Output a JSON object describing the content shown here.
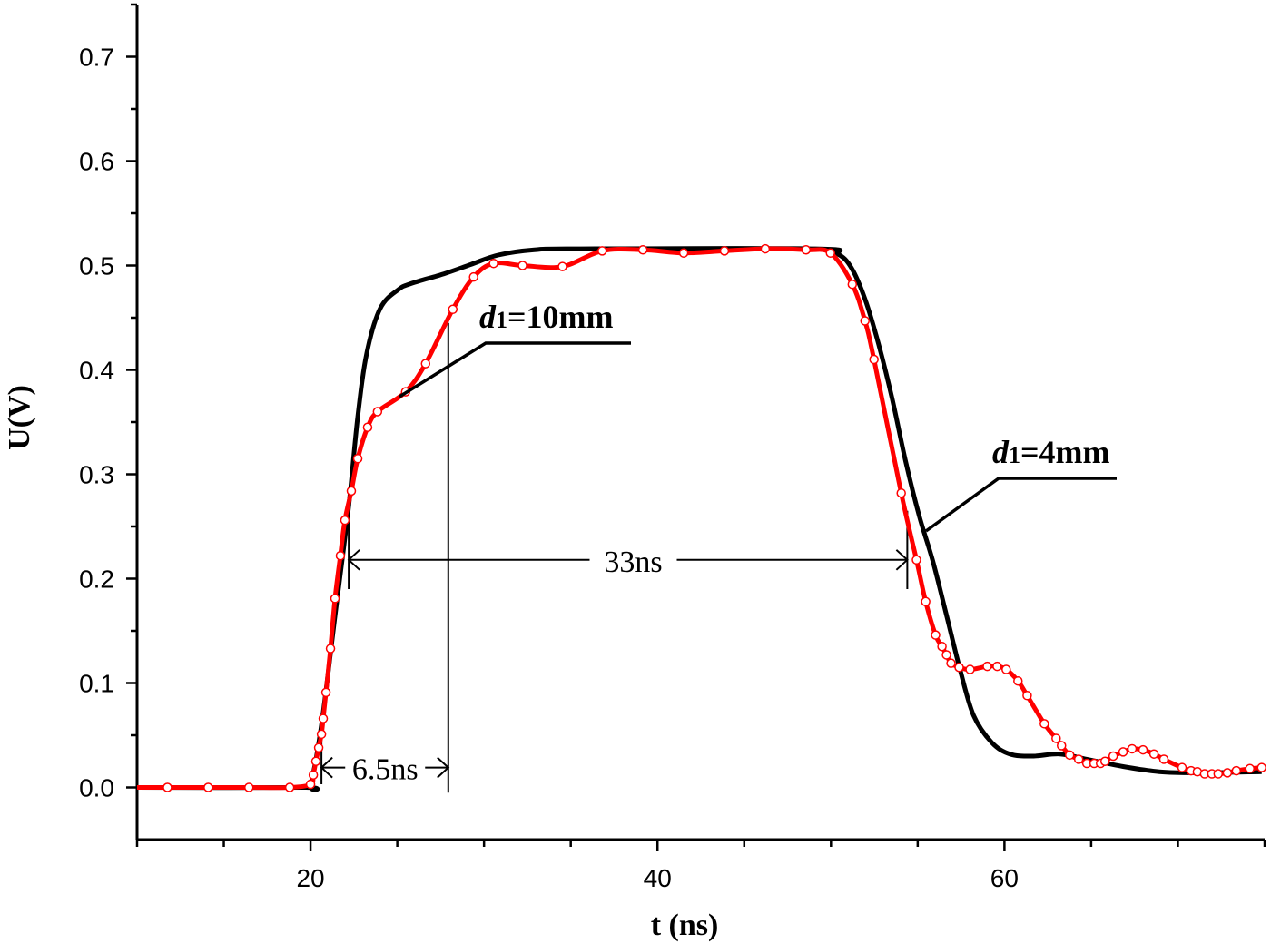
{
  "chart_data": {
    "type": "line",
    "title": "",
    "xlabel": "t (ns)",
    "ylabel": "U(V)",
    "xlim": [
      10,
      75
    ],
    "ylim": [
      -0.05,
      0.75
    ],
    "xticks": [
      20,
      40,
      60
    ],
    "xtick_labels": [
      "20",
      "40",
      "60"
    ],
    "x_minor_step": 5,
    "yticks": [
      0.0,
      0.1,
      0.2,
      0.3,
      0.4,
      0.5,
      0.6,
      0.7
    ],
    "ytick_labels": [
      "0.0",
      "0.1",
      "0.2",
      "0.3",
      "0.4",
      "0.5",
      "0.6",
      "0.7"
    ],
    "y_minor_step": 0.05,
    "grid": false,
    "series": [
      {
        "name": "d1=4mm",
        "label_italic": "d",
        "label_sub": "1",
        "label_rest": "=4mm",
        "color": "#000000",
        "marker": "none",
        "x": [
          10,
          19.58,
          20.0,
          20.63,
          21.41,
          22.19,
          22.72,
          23.24,
          24.02,
          25.07,
          25.85,
          27.68,
          29.24,
          30.81,
          32.9,
          35.5,
          49.09,
          50.39,
          51.17,
          51.96,
          52.74,
          53.52,
          54.31,
          55.09,
          55.87,
          56.66,
          57.44,
          58.22,
          59.27,
          60.31,
          61.62,
          63.19,
          64.75,
          66.84,
          68.93,
          71.02,
          74.83
        ],
        "y": [
          0,
          0,
          0.003,
          0.06,
          0.164,
          0.268,
          0.355,
          0.416,
          0.459,
          0.477,
          0.483,
          0.492,
          0.501,
          0.51,
          0.515,
          0.516,
          0.516,
          0.511,
          0.498,
          0.468,
          0.425,
          0.373,
          0.312,
          0.26,
          0.217,
          0.165,
          0.113,
          0.069,
          0.043,
          0.032,
          0.03,
          0.032,
          0.027,
          0.02,
          0.015,
          0.014,
          0.015
        ]
      },
      {
        "name": "d1=10mm",
        "label_italic": "d",
        "label_sub": "1",
        "label_rest": "=10mm",
        "color": "#ff0000",
        "marker": "open-circle",
        "x": [
          10,
          11.75,
          14.1,
          16.45,
          18.8,
          20.0,
          20.16,
          20.31,
          20.47,
          20.63,
          20.73,
          20.89,
          21.15,
          21.41,
          21.72,
          21.98,
          22.35,
          22.72,
          23.29,
          23.86,
          25.48,
          26.63,
          28.2,
          29.4,
          30.55,
          32.22,
          34.52,
          36.81,
          39.16,
          41.51,
          43.86,
          46.21,
          48.56,
          49.97,
          51.23,
          51.96,
          52.48,
          54.05,
          54.93,
          55.46,
          56.03,
          56.4,
          56.66,
          56.92,
          57.39,
          58.02,
          59.01,
          59.58,
          60.1,
          60.78,
          61.31,
          62.3,
          62.98,
          63.29,
          63.76,
          64.28,
          64.75,
          65.17,
          65.54,
          65.8,
          66.27,
          66.84,
          67.36,
          67.99,
          68.62,
          69.19,
          70.24,
          70.76,
          71.12,
          71.54,
          71.96,
          72.32,
          72.85,
          73.37,
          74.15,
          74.83
        ],
        "y": [
          0,
          0,
          0,
          0,
          0,
          0.003,
          0.012,
          0.025,
          0.038,
          0.051,
          0.066,
          0.091,
          0.133,
          0.181,
          0.222,
          0.256,
          0.284,
          0.315,
          0.345,
          0.36,
          0.379,
          0.406,
          0.458,
          0.489,
          0.502,
          0.5,
          0.499,
          0.514,
          0.515,
          0.512,
          0.514,
          0.516,
          0.515,
          0.512,
          0.482,
          0.447,
          0.41,
          0.282,
          0.218,
          0.178,
          0.146,
          0.135,
          0.127,
          0.119,
          0.115,
          0.113,
          0.116,
          0.116,
          0.113,
          0.102,
          0.088,
          0.061,
          0.047,
          0.04,
          0.031,
          0.027,
          0.023,
          0.023,
          0.023,
          0.025,
          0.03,
          0.034,
          0.037,
          0.036,
          0.032,
          0.027,
          0.019,
          0.016,
          0.015,
          0.013,
          0.013,
          0.013,
          0.014,
          0.016,
          0.018,
          0.019
        ]
      }
    ],
    "annotations": [
      {
        "text": "33ns",
        "from_t": 22.2,
        "to_t": 54.4,
        "at_u": 0.218
      },
      {
        "text": "6.5ns",
        "from_t": 20.63,
        "to_t": 27.94,
        "at_u": 0.019
      }
    ]
  }
}
